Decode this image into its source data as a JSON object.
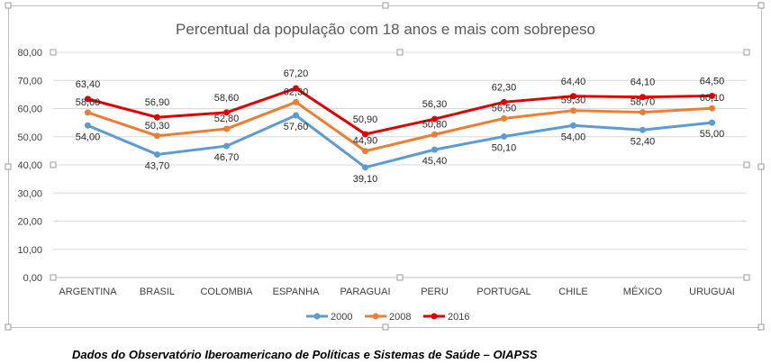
{
  "chart_data": {
    "type": "line",
    "title": "Percentual da população com 18 anos e mais com sobrepeso",
    "categories": [
      "ARGENTINA",
      "BRASIL",
      "COLOMBIA",
      "ESPANHA",
      "PARAGUAI",
      "PERU",
      "PORTUGAL",
      "CHILE",
      "MÉXICO",
      "URUGUAI"
    ],
    "yticks": [
      "0,00",
      "10,00",
      "20,00",
      "30,00",
      "40,00",
      "50,00",
      "60,00",
      "70,00",
      "80,00"
    ],
    "ylim": [
      0,
      80
    ],
    "grid": true,
    "legend_position": "bottom",
    "series": [
      {
        "name": "2000",
        "color": "#5b9bd5",
        "values": [
          54.0,
          43.7,
          46.7,
          57.6,
          39.1,
          45.4,
          50.1,
          54.0,
          52.4,
          55.0
        ],
        "labels": [
          "54,00",
          "43,70",
          "46,70",
          "57,60",
          "39,10",
          "45,40",
          "50,10",
          "54,00",
          "52,40",
          "55,00"
        ]
      },
      {
        "name": "2008",
        "color": "#ed7d31",
        "values": [
          58.6,
          50.3,
          52.8,
          62.3,
          44.9,
          50.8,
          56.5,
          59.3,
          58.7,
          60.1
        ],
        "labels": [
          "58,60",
          "50,30",
          "52,80",
          "62,30",
          "44,90",
          "50,80",
          "56,50",
          "59,30",
          "58,70",
          "60,10"
        ]
      },
      {
        "name": "2016",
        "color": "#e00000",
        "values": [
          63.4,
          56.9,
          58.6,
          67.2,
          50.9,
          56.3,
          62.3,
          64.4,
          64.1,
          64.5
        ],
        "labels": [
          "63,40",
          "56,90",
          "58,60",
          "67,20",
          "50,90",
          "56,30",
          "62,30",
          "64,40",
          "64,10",
          "64,50"
        ]
      }
    ]
  },
  "caption": "Dados do Observatório Iberoamericano de Políticas e Sistemas de Saúde – OIAPSS"
}
